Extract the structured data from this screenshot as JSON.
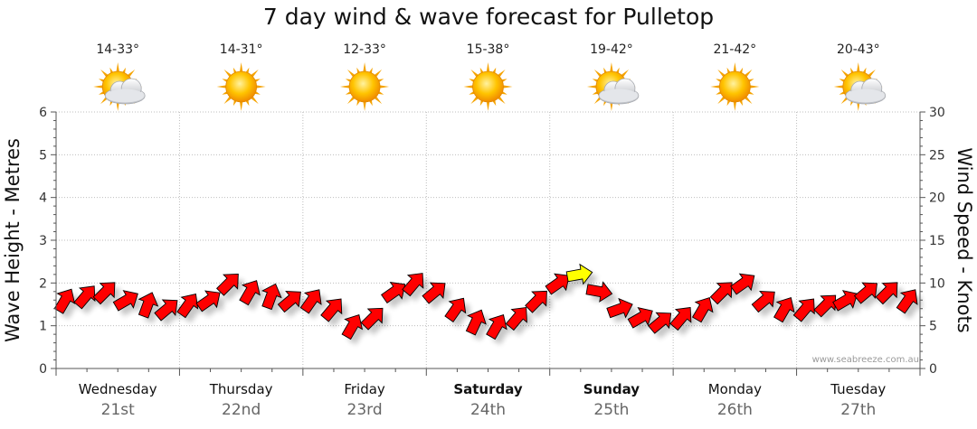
{
  "title": "7 day wind & wave forecast for Pulletop",
  "credit": "www.seabreeze.com.au",
  "chart_data": {
    "type": "line",
    "title": "7 day wind & wave forecast for Pulletop",
    "ylabel_left": "Wave Height - Metres",
    "ylabel_right": "Wind Speed - Knots",
    "ylim_left": [
      0,
      6
    ],
    "ylim_right": [
      0,
      30
    ],
    "yticks_left": [
      "0",
      "1",
      "2",
      "3",
      "4",
      "5",
      "6"
    ],
    "yticks_right": [
      "0",
      "5",
      "10",
      "15",
      "20",
      "25",
      "30"
    ],
    "grid": true,
    "days": [
      {
        "day": "Wednesday",
        "date": "21st",
        "temp": "14-33°",
        "weather": "partly-cloudy",
        "bold": false
      },
      {
        "day": "Thursday",
        "date": "22nd",
        "temp": "14-31°",
        "weather": "sunny",
        "bold": false
      },
      {
        "day": "Friday",
        "date": "23rd",
        "temp": "12-33°",
        "weather": "sunny",
        "bold": false
      },
      {
        "day": "Saturday",
        "date": "24th",
        "temp": "15-38°",
        "weather": "sunny",
        "bold": true
      },
      {
        "day": "Sunday",
        "date": "25th",
        "temp": "19-42°",
        "weather": "partly-cloudy",
        "bold": true
      },
      {
        "day": "Monday",
        "date": "26th",
        "temp": "21-42°",
        "weather": "sunny",
        "bold": false
      },
      {
        "day": "Tuesday",
        "date": "27th",
        "temp": "20-43°",
        "weather": "partly-cloudy",
        "bold": false
      }
    ],
    "series": [
      {
        "type": "wind-arrows",
        "unit": "knots",
        "color": "#ff0000",
        "highlight_color": "#ffff00",
        "x_days": [
          0.0,
          0.17,
          0.33,
          0.5,
          0.67,
          0.83,
          1.0,
          1.17,
          1.33,
          1.5,
          1.67,
          1.83,
          2.0,
          2.17,
          2.33,
          2.5,
          2.67,
          2.83,
          3.0,
          3.17,
          3.33,
          3.5,
          3.67,
          3.83,
          4.0,
          4.17,
          4.33,
          4.5,
          4.67,
          4.83,
          5.0,
          5.17,
          5.33,
          5.5,
          5.67,
          5.83,
          6.0,
          6.17,
          6.33,
          6.5,
          6.67,
          6.83
        ],
        "speed": [
          8,
          8.5,
          9,
          8,
          7.5,
          7,
          7.5,
          8,
          10,
          9,
          8.5,
          8,
          8,
          7,
          5,
          6,
          9,
          10,
          9,
          7,
          5.5,
          5,
          6,
          8,
          10,
          11,
          9,
          7,
          6,
          5.5,
          6,
          7,
          9,
          10,
          8,
          7,
          7,
          7.5,
          8,
          9,
          9,
          8
        ],
        "direction_deg": [
          60,
          50,
          45,
          30,
          70,
          40,
          55,
          35,
          45,
          60,
          70,
          40,
          55,
          50,
          60,
          45,
          35,
          50,
          40,
          55,
          65,
          60,
          50,
          45,
          35,
          10,
          350,
          20,
          30,
          40,
          50,
          60,
          45,
          35,
          40,
          60,
          50,
          45,
          30,
          40,
          45,
          55
        ],
        "highlight": [
          false,
          false,
          false,
          false,
          false,
          false,
          false,
          false,
          false,
          false,
          false,
          false,
          false,
          false,
          false,
          false,
          false,
          false,
          false,
          false,
          false,
          false,
          false,
          false,
          false,
          true,
          false,
          false,
          false,
          false,
          false,
          false,
          false,
          false,
          false,
          false,
          false,
          false,
          false,
          false,
          false,
          false
        ]
      }
    ]
  }
}
